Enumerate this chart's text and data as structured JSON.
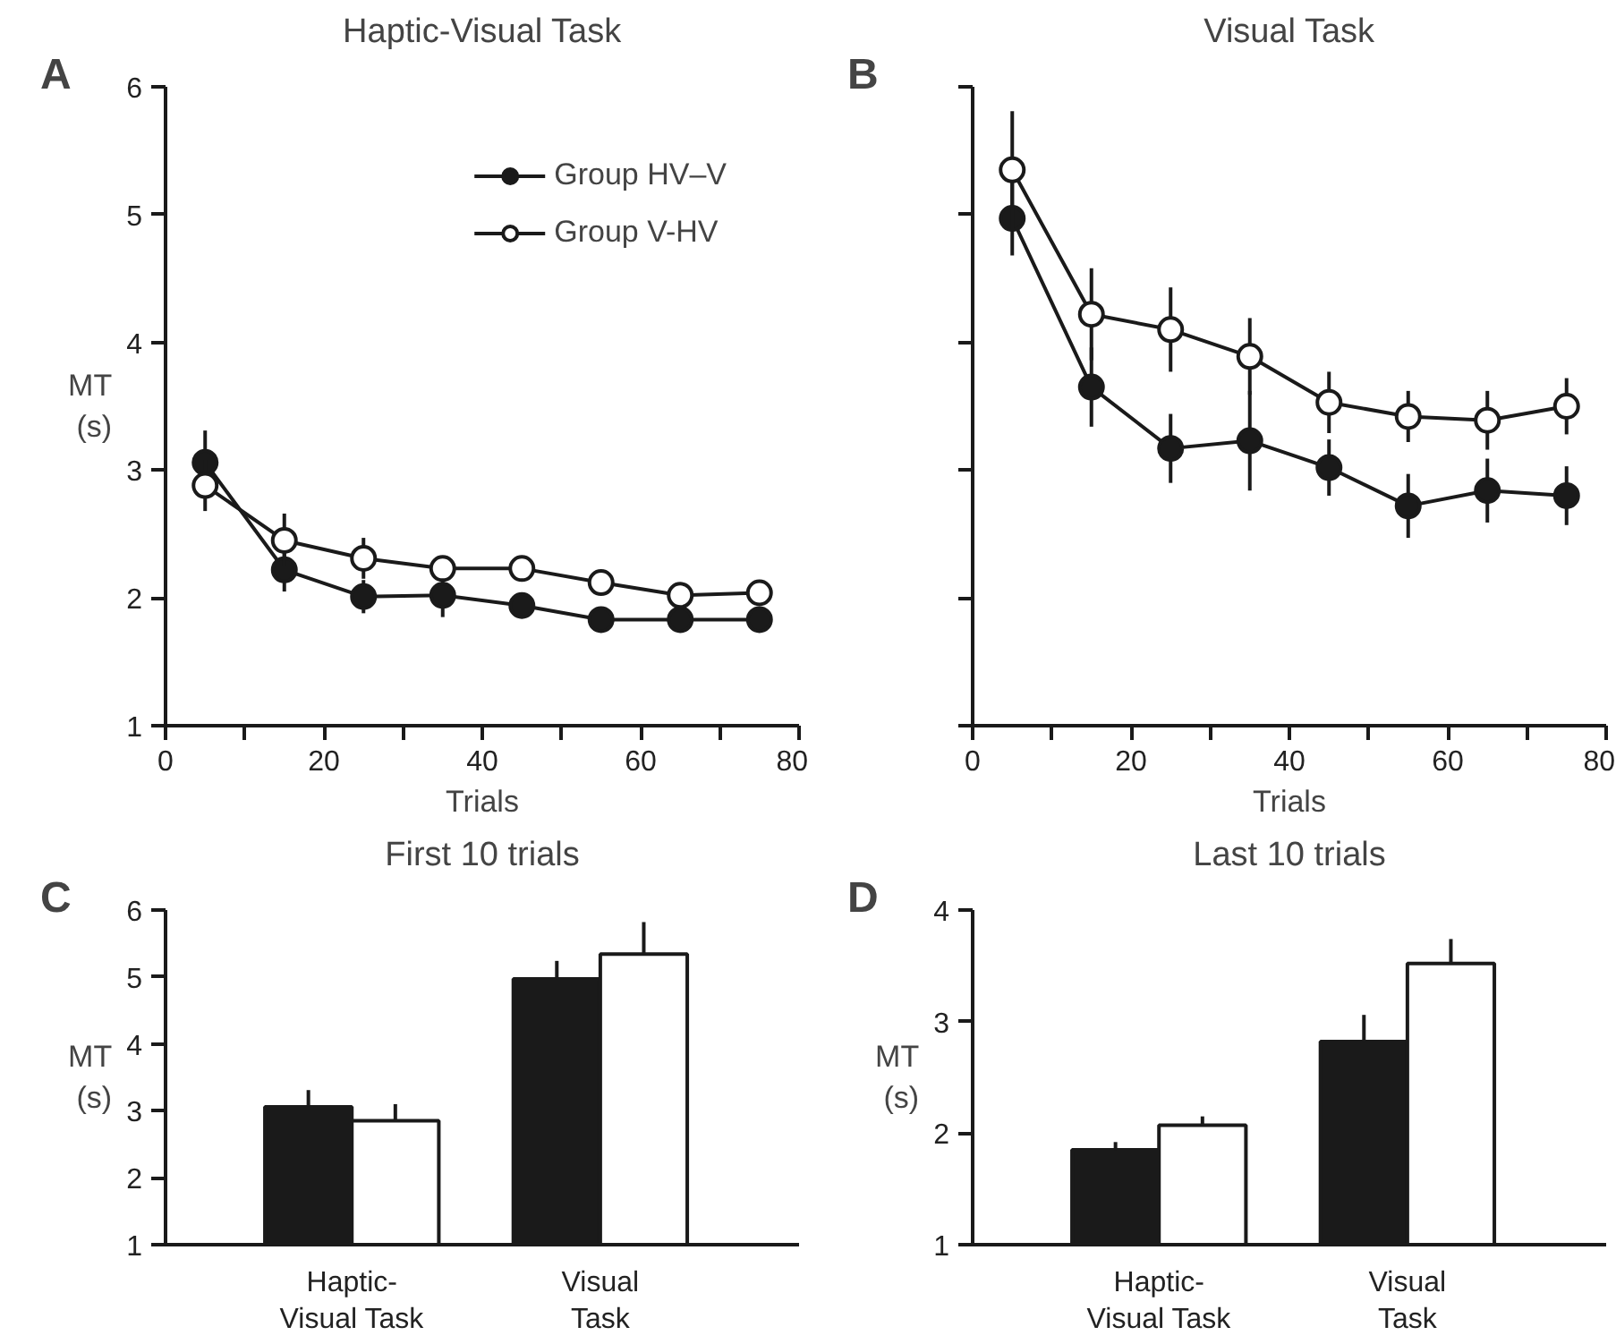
{
  "chart_data": [
    {
      "type": "line",
      "title": "Haptic-Visual Task",
      "xlabel": "Trials",
      "ylabel": "MT\n(s)",
      "annotations": [
        "A"
      ],
      "marker": "circle",
      "legend": "top right",
      "grid": false,
      "x": [
        5,
        15,
        25,
        35,
        45,
        55,
        65,
        75
      ],
      "xlim": [
        0,
        80
      ],
      "ylim": [
        1,
        6
      ],
      "xticks": [
        0,
        {
          "value": 10,
          "label": null
        },
        20,
        {
          "value": 30,
          "label": null
        },
        40,
        {
          "value": 50,
          "label": null
        },
        60,
        {
          "value": 70,
          "label": null
        },
        80
      ],
      "yticks": [
        1,
        2,
        3,
        4,
        5,
        6
      ],
      "series": [
        {
          "name": "Group HV–V",
          "color": "#1a1a1a",
          "values": [
            3.06,
            2.22,
            2.01,
            2.02,
            1.94,
            1.83,
            1.83,
            1.83
          ],
          "errors": [
            0.25,
            0.17,
            0.13,
            0.17,
            0.05,
            0.05,
            0.05,
            0.05
          ]
        },
        {
          "name": "Group V-HV",
          "color": "#ffffff",
          "values": [
            2.88,
            2.45,
            2.31,
            2.23,
            2.23,
            2.12,
            2.02,
            2.04
          ],
          "errors": [
            0.2,
            0.21,
            0.16,
            0.06,
            0.1,
            0.05,
            0.04,
            null
          ]
        }
      ]
    },
    {
      "type": "line",
      "title": "Visual Task",
      "xlabel": "Trials",
      "annotations": [
        "B"
      ],
      "marker": "circle",
      "grid": false,
      "tick_labels": "x",
      "x": [
        5,
        15,
        25,
        35,
        45,
        55,
        65,
        75
      ],
      "xlim": [
        0,
        80
      ],
      "ylim": [
        1,
        6
      ],
      "xticks": [
        0,
        {
          "value": 10,
          "label": null
        },
        20,
        {
          "value": 30,
          "label": null
        },
        40,
        {
          "value": 50,
          "label": null
        },
        60,
        {
          "value": 70,
          "label": null
        },
        80
      ],
      "yticks": [
        1,
        2,
        3,
        4,
        5,
        6
      ],
      "series": [
        {
          "color": "#1a1a1a",
          "values": [
            4.97,
            3.65,
            3.17,
            3.23,
            3.02,
            2.72,
            2.84,
            2.8
          ],
          "errors": [
            0.29,
            0.31,
            0.27,
            0.39,
            0.22,
            0.25,
            0.25,
            0.23
          ]
        },
        {
          "color": "#ffffff",
          "values": [
            5.35,
            4.22,
            4.1,
            3.89,
            3.53,
            3.42,
            3.39,
            3.5
          ],
          "errors": [
            0.46,
            0.36,
            0.33,
            0.3,
            0.24,
            0.2,
            0.23,
            0.22
          ]
        }
      ]
    },
    {
      "type": "bar",
      "title": "First 10 trials",
      "ylabel": "MT\n(s)",
      "annotations": [
        "C"
      ],
      "grid": false,
      "categories": [
        "Haptic-\nVisual Task",
        "Visual\nTask"
      ],
      "ylim": [
        1,
        6
      ],
      "yticks": [
        1,
        2,
        3,
        4,
        5,
        6
      ],
      "series": [
        {
          "color": "#1a1a1a",
          "values": [
            3.06,
            4.97
          ],
          "errors": [
            [
              3.06,
              3.31
            ],
            [
              4.97,
              5.24
            ]
          ]
        },
        {
          "color": "#ffffff",
          "values": [
            2.85,
            5.34
          ],
          "errors": [
            [
              2.85,
              3.1
            ],
            [
              5.34,
              5.82
            ]
          ]
        }
      ]
    },
    {
      "type": "bar",
      "title": "Last 10 trials",
      "ylabel": "MT\n(s)",
      "annotations": [
        "D"
      ],
      "grid": false,
      "categories": [
        "Haptic-\nVisual Task",
        "Visual\nTask"
      ],
      "ylim": [
        1,
        4
      ],
      "yticks": [
        1,
        2,
        3,
        4
      ],
      "series": [
        {
          "color": "#1a1a1a",
          "values": [
            1.85,
            2.82
          ],
          "errors": [
            [
              1.85,
              1.92
            ],
            [
              2.82,
              3.06
            ]
          ]
        },
        {
          "color": "#ffffff",
          "values": [
            2.07,
            3.52
          ],
          "errors": [
            [
              2.07,
              2.15
            ],
            [
              3.52,
              3.74
            ]
          ]
        }
      ]
    }
  ]
}
